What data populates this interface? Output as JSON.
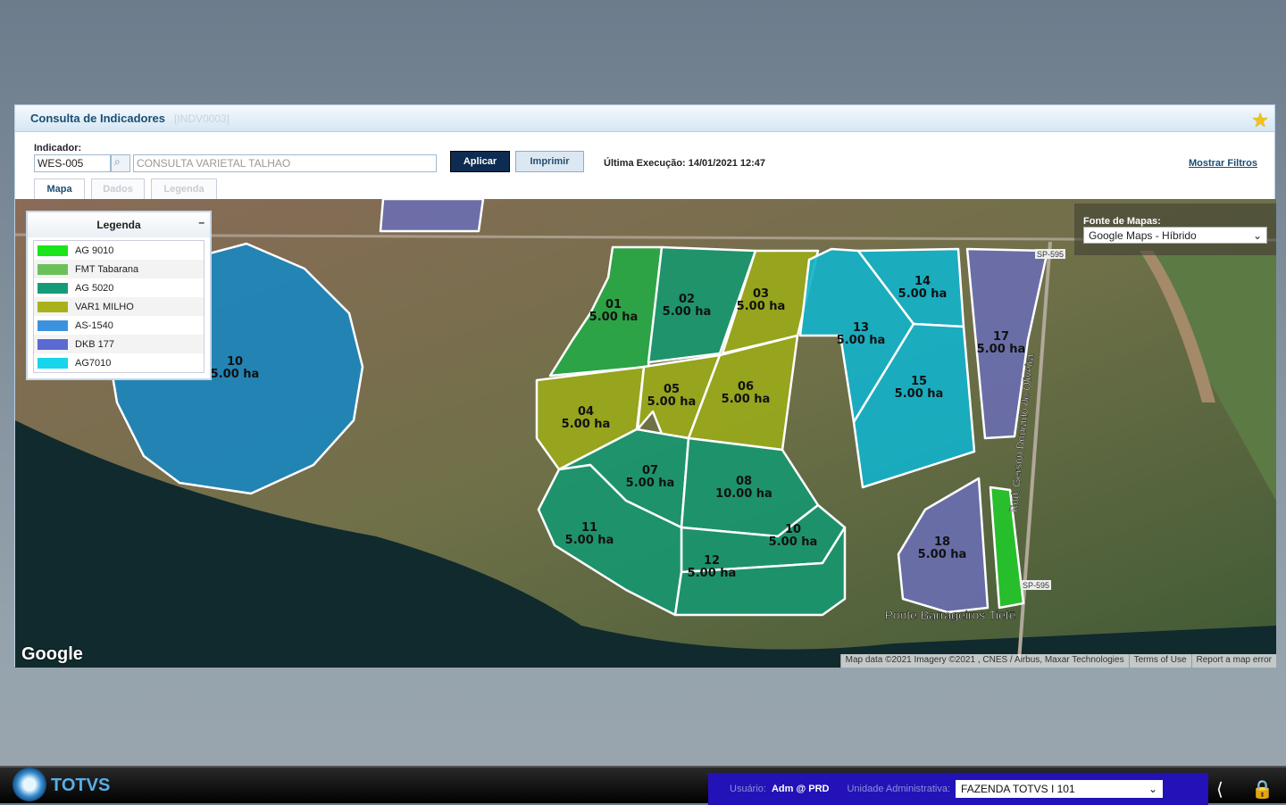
{
  "window": {
    "title": "Consulta de Indicadores",
    "code": "[INDV0003]"
  },
  "form": {
    "indicador_label": "Indicador:",
    "indicador_value": "WES-005",
    "description": "CONSULTA VARIETAL TALHAO",
    "apply": "Aplicar",
    "print": "Imprimir",
    "last_exec": "Última Execução: 14/01/2021 12:47",
    "show_filters": "Mostrar Filtros"
  },
  "tabs": [
    {
      "label": "Mapa",
      "active": true
    },
    {
      "label": "Dados",
      "active": false
    },
    {
      "label": "Legenda",
      "active": false
    }
  ],
  "legend": {
    "title": "Legenda",
    "minimize": "–",
    "items": [
      {
        "label": "AG 9010",
        "color": "#1be41b"
      },
      {
        "label": "FMT Tabarana",
        "color": "#6cc05a"
      },
      {
        "label": "AG 5020",
        "color": "#169b78"
      },
      {
        "label": "VAR1 MILHO",
        "color": "#a9b21a"
      },
      {
        "label": "AS-1540",
        "color": "#3d92de"
      },
      {
        "label": "DKB 177",
        "color": "#5a6ad0"
      },
      {
        "label": "AG7010",
        "color": "#17d5ec"
      }
    ]
  },
  "map_source": {
    "label": "Fonte de Mapas:",
    "value": "Google Maps - Híbrido"
  },
  "fields": [
    {
      "id": "10",
      "area": "5.00 ha",
      "color": "#1a86bf"
    },
    {
      "id": "01",
      "area": "5.00 ha",
      "color": "#25a846"
    },
    {
      "id": "02",
      "area": "5.00 ha",
      "color": "#16976f"
    },
    {
      "id": "03",
      "area": "5.00 ha",
      "color": "#9aaa1a"
    },
    {
      "id": "04",
      "area": "5.00 ha",
      "color": "#9aaa1a"
    },
    {
      "id": "05",
      "area": "5.00 ha",
      "color": "#9aaa1a"
    },
    {
      "id": "06",
      "area": "5.00 ha",
      "color": "#9aaa1a"
    },
    {
      "id": "07",
      "area": "5.00 ha",
      "color": "#16976f"
    },
    {
      "id": "08",
      "area": "10.00 ha",
      "color": "#16976f"
    },
    {
      "id": "10",
      "area": "5.00 ha",
      "color": "#16976f"
    },
    {
      "id": "11",
      "area": "5.00 ha",
      "color": "#16976f"
    },
    {
      "id": "12",
      "area": "5.00 ha",
      "color": "#16976f"
    },
    {
      "id": "13",
      "area": "5.00 ha",
      "color": "#12b3cb"
    },
    {
      "id": "14",
      "area": "5.00 ha",
      "color": "#12b3cb"
    },
    {
      "id": "15",
      "area": "5.00 ha",
      "color": "#12b3cb"
    },
    {
      "id": "17",
      "area": "5.00 ha",
      "color": "#6a6eb0"
    },
    {
      "id": "18",
      "area": "5.00 ha",
      "color": "#6a6eb0"
    },
    {
      "id": "",
      "area": "",
      "color": "#22c82a"
    },
    {
      "id": "",
      "area": "",
      "color": "#6a6eb0"
    }
  ],
  "map_labels": {
    "road": "Rod. Gerson Dourado de Oliveira",
    "road_badge": "SP-595",
    "place": "Ponte Barrageiros Tietê",
    "google": "Google",
    "attribution": "Map data ©2021 Imagery ©2021 , CNES / Airbus, Maxar Technologies",
    "terms": "Terms of Use",
    "report": "Report a map error"
  },
  "footer": {
    "brand": "TOTVS",
    "user_label": "Usuário:",
    "user": "Adm @ PRD",
    "unit_label": "Unidade Administrativa:",
    "unit": "FAZENDA TOTVS I 101"
  }
}
